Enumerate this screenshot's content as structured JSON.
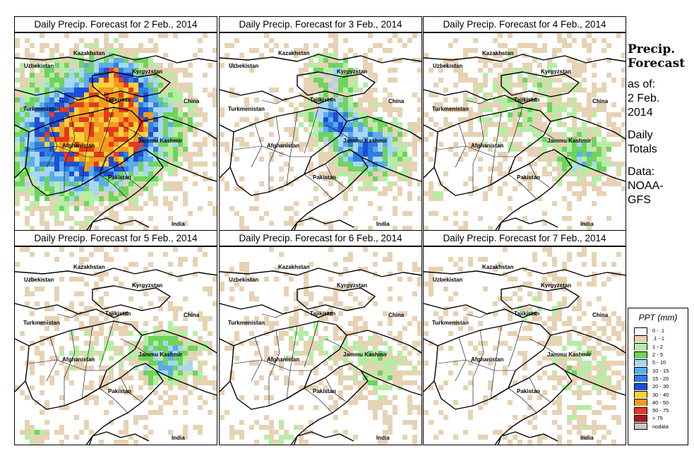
{
  "title_prefix": "Daily Precip. Forecast for",
  "panels": [
    {
      "title": "Daily Precip. Forecast for  2 Feb., 2014",
      "seed": 11,
      "intensity": 1.0,
      "centers": [
        [
          0.28,
          0.52,
          0.32,
          1.0
        ],
        [
          0.55,
          0.45,
          0.25,
          0.75
        ],
        [
          0.47,
          0.22,
          0.14,
          0.6
        ]
      ]
    },
    {
      "title": "Daily Precip. Forecast for  3 Feb., 2014",
      "seed": 23,
      "intensity": 0.8,
      "centers": [
        [
          0.72,
          0.58,
          0.17,
          0.95
        ],
        [
          0.55,
          0.42,
          0.11,
          0.9
        ],
        [
          0.55,
          0.2,
          0.14,
          0.5
        ]
      ]
    },
    {
      "title": "Daily Precip. Forecast for  4 Feb., 2014",
      "seed": 37,
      "intensity": 0.55,
      "centers": [
        [
          0.78,
          0.62,
          0.14,
          0.85
        ],
        [
          0.5,
          0.35,
          0.28,
          0.5
        ],
        [
          0.05,
          0.8,
          0.05,
          0.4
        ]
      ]
    },
    {
      "title": "Daily Precip. Forecast for  5 Feb., 2014",
      "seed": 41,
      "intensity": 0.6,
      "centers": [
        [
          0.75,
          0.55,
          0.16,
          0.95
        ],
        [
          0.35,
          0.5,
          0.18,
          0.3
        ],
        [
          0.1,
          0.95,
          0.06,
          0.5
        ]
      ]
    },
    {
      "title": "Daily Precip. Forecast for  6 Feb., 2014",
      "seed": 53,
      "intensity": 0.45,
      "centers": [
        [
          0.78,
          0.6,
          0.17,
          0.65
        ],
        [
          0.45,
          0.45,
          0.22,
          0.35
        ],
        [
          0.3,
          0.95,
          0.1,
          0.45
        ]
      ]
    },
    {
      "title": "Daily Precip. Forecast for  7 Feb., 2014",
      "seed": 67,
      "intensity": 0.4,
      "centers": [
        [
          0.78,
          0.6,
          0.16,
          0.7
        ],
        [
          0.55,
          0.28,
          0.16,
          0.35
        ],
        [
          0.75,
          0.85,
          0.1,
          0.4
        ]
      ]
    }
  ],
  "places": {
    "kazakhstan": "Kazakhstan",
    "uzbekistan": "Uzbekistan",
    "kyrgyzstan": "Kyrgyzstan",
    "tajikistan": "Tajikistan",
    "turkmenistan": "Turkmenistan",
    "china": "China",
    "afghanistan": "Afghanistan",
    "jammu_kashmir": "Jammu Kashmir",
    "pakistan": "Pakistan",
    "india": "India"
  },
  "sidebar": {
    "title_line1": "Precip.",
    "title_line2": "Forecast",
    "asof_line1": "as of:",
    "asof_line2": "2 Feb.",
    "asof_line3": "2014",
    "totals_line1": "Daily",
    "totals_line2": "Totals",
    "source_line1": "Data:",
    "source_line2": "NOAA-",
    "source_line3": "GFS"
  },
  "legend": {
    "title": "PPT (mm)",
    "items": [
      {
        "label": "0 - .1",
        "color": "#ffffff"
      },
      {
        "label": ".1 - 1",
        "color": "#e6d2b4"
      },
      {
        "label": "1 - 2",
        "color": "#b4eea4"
      },
      {
        "label": "2 - 5",
        "color": "#6ed45e"
      },
      {
        "label": "5 - 10",
        "color": "#a8d6f4"
      },
      {
        "label": "10 - 15",
        "color": "#5aacee"
      },
      {
        "label": "15 - 20",
        "color": "#2f7ee0"
      },
      {
        "label": "20 - 30",
        "color": "#1f4ed4"
      },
      {
        "label": "30 - 40",
        "color": "#f8d23c"
      },
      {
        "label": "40 - 50",
        "color": "#f59a20"
      },
      {
        "label": "50 - 75",
        "color": "#e43a1e"
      },
      {
        "label": "> 75",
        "color": "#a01e1e"
      },
      {
        "label": "nodata",
        "color": "#c8c8c8"
      }
    ]
  }
}
